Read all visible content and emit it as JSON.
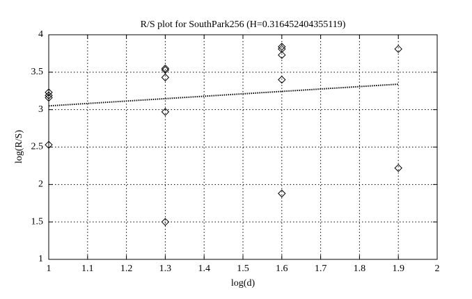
{
  "chart_data": {
    "type": "scatter",
    "title": "R/S plot for SouthPark256 (H=0.316452404355119)",
    "x_label": "log(d)",
    "y_label": "log(R/S)",
    "xlim": [
      1,
      2
    ],
    "ylim": [
      1,
      4
    ],
    "xticks": [
      1,
      1.1,
      1.2,
      1.3,
      1.4,
      1.5,
      1.6,
      1.7,
      1.8,
      1.9,
      2
    ],
    "yticks": [
      1,
      1.5,
      2,
      2.5,
      3,
      3.5,
      4
    ],
    "grid": true,
    "series": [
      {
        "type": "scatter",
        "marker": "diamond",
        "color": "#000000",
        "x": [
          1,
          1,
          1,
          1,
          1.3,
          1.3,
          1.3,
          1.3,
          1.3,
          1.6,
          1.6,
          1.6,
          1.6,
          1.6,
          1.9,
          1.9
        ],
        "values": [
          3.23,
          3.19,
          3.16,
          2.53,
          3.55,
          3.53,
          3.43,
          2.97,
          1.5,
          3.84,
          3.81,
          3.73,
          3.4,
          1.88,
          3.81,
          2.22
        ]
      },
      {
        "type": "line",
        "style": "dotted",
        "color": "#000000",
        "x": [
          1,
          1.9
        ],
        "values": [
          3.05,
          3.34
        ]
      }
    ]
  }
}
